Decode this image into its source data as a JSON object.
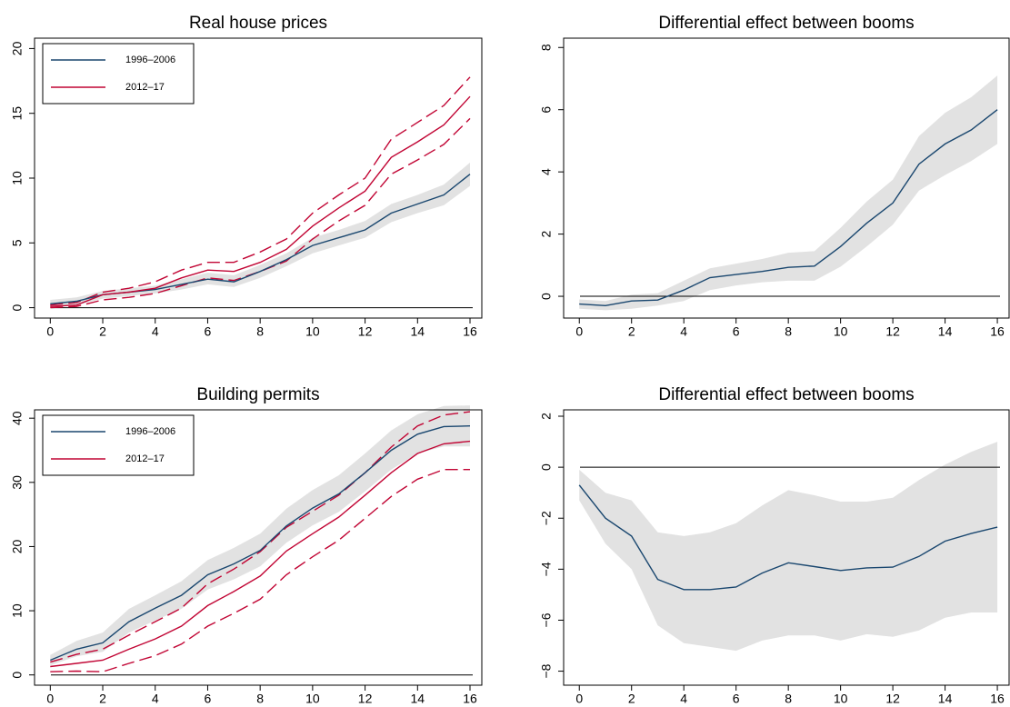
{
  "chart_data": [
    {
      "type": "line",
      "title": "Real house prices",
      "x": [
        0,
        1,
        2,
        3,
        4,
        5,
        6,
        7,
        8,
        9,
        10,
        11,
        12,
        13,
        14,
        15,
        16
      ],
      "xlim": [
        -0.6,
        16.45
      ],
      "xticks": [
        0,
        2,
        4,
        6,
        8,
        10,
        12,
        14,
        16
      ],
      "ylim": [
        -0.8,
        20.8
      ],
      "yticks": [
        0,
        5,
        10,
        15,
        20
      ],
      "hline": 0,
      "legend": "upper left",
      "series": [
        {
          "name": "1996–2006",
          "color": "#1a476f",
          "values": [
            0.3,
            0.5,
            1.0,
            1.2,
            1.4,
            1.8,
            2.2,
            2.0,
            2.8,
            3.7,
            4.8,
            5.4,
            6.0,
            7.3,
            8.0,
            8.7,
            10.3
          ]
        },
        {
          "name": "2012–17",
          "color": "#c10534",
          "values": [
            0.1,
            0.2,
            1.0,
            1.2,
            1.5,
            2.3,
            2.9,
            2.8,
            3.5,
            4.5,
            6.3,
            7.7,
            9.0,
            11.6,
            12.8,
            14.1,
            16.3
          ]
        }
      ],
      "ci_lines": [
        {
          "color": "#c10534",
          "values": [
            0.2,
            0.4,
            1.2,
            1.5,
            2.0,
            2.9,
            3.5,
            3.5,
            4.3,
            5.3,
            7.3,
            8.7,
            10.0,
            13.0,
            14.3,
            15.6,
            17.8
          ]
        },
        {
          "color": "#c10534",
          "values": [
            0.0,
            0.1,
            0.6,
            0.8,
            1.1,
            1.7,
            2.3,
            2.1,
            2.8,
            3.6,
            5.3,
            6.7,
            7.9,
            10.3,
            11.4,
            12.6,
            14.6
          ]
        }
      ],
      "bands": [
        {
          "color": "#e2e2e2",
          "lower": [
            0.0,
            0.2,
            0.7,
            0.9,
            1.1,
            1.4,
            1.8,
            1.6,
            2.3,
            3.2,
            4.2,
            4.8,
            5.4,
            6.6,
            7.3,
            7.9,
            9.4
          ],
          "upper": [
            0.6,
            0.8,
            1.3,
            1.5,
            1.7,
            2.2,
            2.7,
            2.5,
            3.3,
            4.2,
            5.4,
            6.0,
            6.7,
            8.0,
            8.7,
            9.5,
            11.2
          ]
        }
      ]
    },
    {
      "type": "line",
      "title": "Differential effect between booms",
      "x": [
        0,
        1,
        2,
        3,
        4,
        5,
        6,
        7,
        8,
        9,
        10,
        11,
        12,
        13,
        14,
        15,
        16
      ],
      "xlim": [
        -0.6,
        16.45
      ],
      "xticks": [
        0,
        2,
        4,
        6,
        8,
        10,
        12,
        14,
        16
      ],
      "ylim": [
        -0.7,
        8.3
      ],
      "yticks": [
        0,
        2,
        4,
        6,
        8
      ],
      "hline": 0,
      "series": [
        {
          "color": "#1a476f",
          "values": [
            -0.25,
            -0.3,
            -0.15,
            -0.12,
            0.2,
            0.6,
            0.7,
            0.8,
            0.93,
            0.97,
            1.6,
            2.35,
            3.0,
            4.25,
            4.9,
            5.35,
            6.0
          ]
        }
      ],
      "bands": [
        {
          "color": "#e2e2e2",
          "lower": [
            -0.4,
            -0.45,
            -0.4,
            -0.3,
            -0.15,
            0.2,
            0.35,
            0.45,
            0.5,
            0.5,
            0.95,
            1.6,
            2.3,
            3.4,
            3.9,
            4.35,
            4.9
          ],
          "upper": [
            -0.1,
            -0.15,
            0.05,
            0.1,
            0.5,
            0.9,
            1.05,
            1.2,
            1.4,
            1.45,
            2.2,
            3.05,
            3.75,
            5.15,
            5.9,
            6.4,
            7.1
          ]
        }
      ]
    },
    {
      "type": "line",
      "title": "Building permits",
      "x": [
        0,
        1,
        2,
        3,
        4,
        5,
        6,
        7,
        8,
        9,
        10,
        11,
        12,
        13,
        14,
        15,
        16
      ],
      "xlim": [
        -0.6,
        16.45
      ],
      "xticks": [
        0,
        2,
        4,
        6,
        8,
        10,
        12,
        14,
        16
      ],
      "ylim": [
        -1.6,
        41.3
      ],
      "yticks": [
        0,
        10,
        20,
        30,
        40
      ],
      "hline": 0,
      "legend": "upper left",
      "series": [
        {
          "name": "1996–2006",
          "color": "#1a476f",
          "values": [
            2.3,
            4.0,
            5.0,
            8.3,
            10.4,
            12.4,
            15.6,
            17.3,
            19.4,
            23.2,
            26.0,
            28.2,
            31.5,
            35.0,
            37.5,
            38.7,
            38.8
          ]
        },
        {
          "name": "2012–17",
          "color": "#c10534",
          "values": [
            1.3,
            1.8,
            2.3,
            4.0,
            5.6,
            7.6,
            10.8,
            13.0,
            15.4,
            19.3,
            22.0,
            24.6,
            28.0,
            31.5,
            34.5,
            36.0,
            36.4
          ]
        }
      ],
      "ci_lines": [
        {
          "color": "#c10534",
          "values": [
            2.0,
            3.2,
            4.0,
            6.2,
            8.3,
            10.4,
            14.2,
            16.5,
            19.2,
            23.0,
            25.5,
            28.0,
            31.5,
            35.5,
            38.8,
            40.5,
            41.0
          ]
        },
        {
          "color": "#c10534",
          "values": [
            0.5,
            0.6,
            0.5,
            1.8,
            3.0,
            4.8,
            7.6,
            9.6,
            11.8,
            15.6,
            18.4,
            21.0,
            24.4,
            27.8,
            30.5,
            32.0,
            32.0
          ]
        }
      ],
      "bands": [
        {
          "color": "#e2e2e2",
          "lower": [
            1.5,
            2.9,
            3.6,
            6.6,
            8.5,
            10.3,
            13.3,
            14.9,
            16.9,
            20.6,
            23.3,
            25.4,
            28.6,
            32.0,
            34.5,
            35.6,
            35.6
          ],
          "upper": [
            3.1,
            5.3,
            6.6,
            10.3,
            12.4,
            14.6,
            17.9,
            19.8,
            22.0,
            25.9,
            28.8,
            31.1,
            34.5,
            38.1,
            40.6,
            41.9,
            42.0
          ]
        }
      ]
    },
    {
      "type": "line",
      "title": "Differential effect between booms",
      "x": [
        0,
        1,
        2,
        3,
        4,
        5,
        6,
        7,
        8,
        9,
        10,
        11,
        12,
        13,
        14,
        15,
        16
      ],
      "xlim": [
        -0.6,
        16.45
      ],
      "xticks": [
        0,
        2,
        4,
        6,
        8,
        10,
        12,
        14,
        16
      ],
      "ylim": [
        -8.55,
        2.25
      ],
      "yticks": [
        {
          "value": -8,
          "label": "−8"
        },
        {
          "value": -6,
          "label": "−6"
        },
        {
          "value": -4,
          "label": "−4"
        },
        {
          "value": -2,
          "label": "−2"
        },
        0,
        2
      ],
      "hline": 0,
      "series": [
        {
          "color": "#1a476f",
          "values": [
            -0.7,
            -2.0,
            -2.7,
            -4.4,
            -4.8,
            -4.8,
            -4.7,
            -4.15,
            -3.75,
            -3.9,
            -4.05,
            -3.95,
            -3.92,
            -3.5,
            -2.9,
            -2.6,
            -2.35
          ]
        }
      ],
      "bands": [
        {
          "color": "#e2e2e2",
          "lower": [
            -1.3,
            -3.0,
            -4.0,
            -6.2,
            -6.9,
            -7.05,
            -7.2,
            -6.8,
            -6.6,
            -6.6,
            -6.8,
            -6.55,
            -6.65,
            -6.4,
            -5.9,
            -5.7,
            -5.7
          ],
          "upper": [
            -0.1,
            -1.0,
            -1.3,
            -2.55,
            -2.7,
            -2.55,
            -2.2,
            -1.5,
            -0.9,
            -1.1,
            -1.35,
            -1.35,
            -1.2,
            -0.5,
            0.1,
            0.6,
            1.0
          ]
        }
      ]
    }
  ]
}
